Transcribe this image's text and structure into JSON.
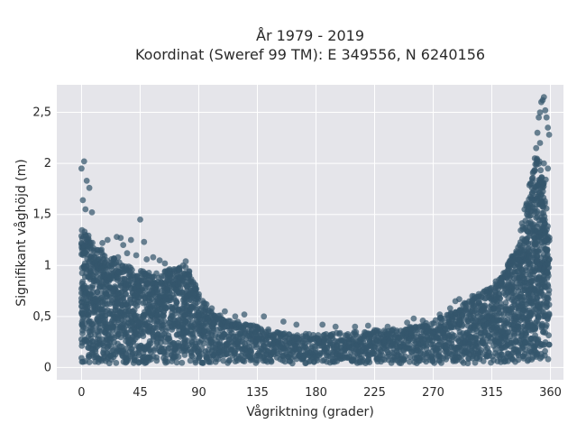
{
  "chart_data": {
    "type": "scatter",
    "title_line1": "År 1979 - 2019",
    "title_line2": "Koordinat (Sweref 99 TM): E 349556, N 6240156",
    "xlabel": "Vågriktning (grader)",
    "ylabel": "Signifikant våghöjd (m)",
    "xlim": [
      -19,
      370
    ],
    "ylim": [
      -0.12,
      2.77
    ],
    "x_ticks": [
      {
        "value": 0,
        "label": "0"
      },
      {
        "value": 45,
        "label": "45"
      },
      {
        "value": 90,
        "label": "90"
      },
      {
        "value": 135,
        "label": "135"
      },
      {
        "value": 180,
        "label": "180"
      },
      {
        "value": 225,
        "label": "225"
      },
      {
        "value": 270,
        "label": "270"
      },
      {
        "value": 315,
        "label": "315"
      },
      {
        "value": 360,
        "label": "360"
      }
    ],
    "y_ticks": [
      {
        "value": 0,
        "label": "0"
      },
      {
        "value": 0.5,
        "label": "0,5"
      },
      {
        "value": 1,
        "label": "1"
      },
      {
        "value": 1.5,
        "label": "1,5"
      },
      {
        "value": 2,
        "label": "2"
      },
      {
        "value": 2.5,
        "label": "2,5"
      }
    ],
    "grid": true,
    "marker_color": "#34566c",
    "plot_background": "#e5e5ea",
    "upper_envelope": [
      [
        0,
        1.35
      ],
      [
        5,
        1.3
      ],
      [
        10,
        1.2
      ],
      [
        15,
        1.15
      ],
      [
        20,
        1.1
      ],
      [
        25,
        1.1
      ],
      [
        30,
        1.05
      ],
      [
        35,
        1.0
      ],
      [
        40,
        0.98
      ],
      [
        45,
        0.95
      ],
      [
        50,
        0.95
      ],
      [
        55,
        0.93
      ],
      [
        60,
        0.92
      ],
      [
        65,
        0.95
      ],
      [
        70,
        0.98
      ],
      [
        75,
        0.98
      ],
      [
        80,
        1.0
      ],
      [
        85,
        0.9
      ],
      [
        90,
        0.72
      ],
      [
        95,
        0.62
      ],
      [
        100,
        0.55
      ],
      [
        110,
        0.48
      ],
      [
        120,
        0.45
      ],
      [
        135,
        0.4
      ],
      [
        150,
        0.35
      ],
      [
        165,
        0.33
      ],
      [
        180,
        0.33
      ],
      [
        200,
        0.34
      ],
      [
        225,
        0.37
      ],
      [
        240,
        0.38
      ],
      [
        255,
        0.4
      ],
      [
        270,
        0.45
      ],
      [
        285,
        0.55
      ],
      [
        300,
        0.68
      ],
      [
        315,
        0.8
      ],
      [
        325,
        0.95
      ],
      [
        335,
        1.2
      ],
      [
        340,
        1.5
      ],
      [
        345,
        1.9
      ],
      [
        350,
        2.1
      ],
      [
        355,
        1.9
      ],
      [
        360,
        1.0
      ]
    ],
    "outliers": [
      [
        0,
        1.95
      ],
      [
        2,
        2.02
      ],
      [
        4,
        1.83
      ],
      [
        6,
        1.76
      ],
      [
        1,
        1.64
      ],
      [
        3,
        1.55
      ],
      [
        8,
        1.52
      ],
      [
        45,
        1.45
      ],
      [
        27,
        1.28
      ],
      [
        30,
        1.27
      ],
      [
        20,
        1.25
      ],
      [
        38,
        1.25
      ],
      [
        48,
        1.23
      ],
      [
        16,
        1.22
      ],
      [
        32,
        1.2
      ],
      [
        35,
        1.12
      ],
      [
        42,
        1.1
      ],
      [
        55,
        1.08
      ],
      [
        28,
        1.08
      ],
      [
        50,
        1.06
      ],
      [
        60,
        1.05
      ],
      [
        64,
        1.02
      ],
      [
        80,
        1.04
      ],
      [
        78,
        1.0
      ],
      [
        96,
        0.62
      ],
      [
        100,
        0.58
      ],
      [
        110,
        0.55
      ],
      [
        118,
        0.5
      ],
      [
        125,
        0.52
      ],
      [
        140,
        0.5
      ],
      [
        155,
        0.45
      ],
      [
        165,
        0.42
      ],
      [
        185,
        0.42
      ],
      [
        195,
        0.4
      ],
      [
        210,
        0.4
      ],
      [
        220,
        0.41
      ],
      [
        235,
        0.4
      ],
      [
        250,
        0.44
      ],
      [
        255,
        0.48
      ],
      [
        262,
        0.46
      ],
      [
        275,
        0.52
      ],
      [
        283,
        0.58
      ],
      [
        287,
        0.65
      ],
      [
        290,
        0.67
      ],
      [
        295,
        0.6
      ],
      [
        300,
        0.7
      ],
      [
        305,
        0.72
      ],
      [
        310,
        0.75
      ],
      [
        318,
        0.78
      ],
      [
        322,
        0.85
      ],
      [
        328,
        0.92
      ],
      [
        332,
        1.0
      ],
      [
        336,
        1.05
      ],
      [
        338,
        1.15
      ],
      [
        340,
        1.25
      ],
      [
        342,
        1.5
      ],
      [
        344,
        1.6
      ],
      [
        345,
        1.8
      ],
      [
        347,
        1.92
      ],
      [
        348,
        2.05
      ],
      [
        349,
        2.15
      ],
      [
        350,
        2.3
      ],
      [
        351,
        2.45
      ],
      [
        352,
        2.5
      ],
      [
        353,
        2.6
      ],
      [
        354,
        2.62
      ],
      [
        355,
        2.65
      ],
      [
        356,
        2.52
      ],
      [
        357,
        2.45
      ],
      [
        358,
        2.35
      ],
      [
        359,
        2.28
      ],
      [
        346,
        1.85
      ],
      [
        352,
        2.2
      ],
      [
        355,
        2.0
      ],
      [
        358,
        1.95
      ]
    ]
  }
}
